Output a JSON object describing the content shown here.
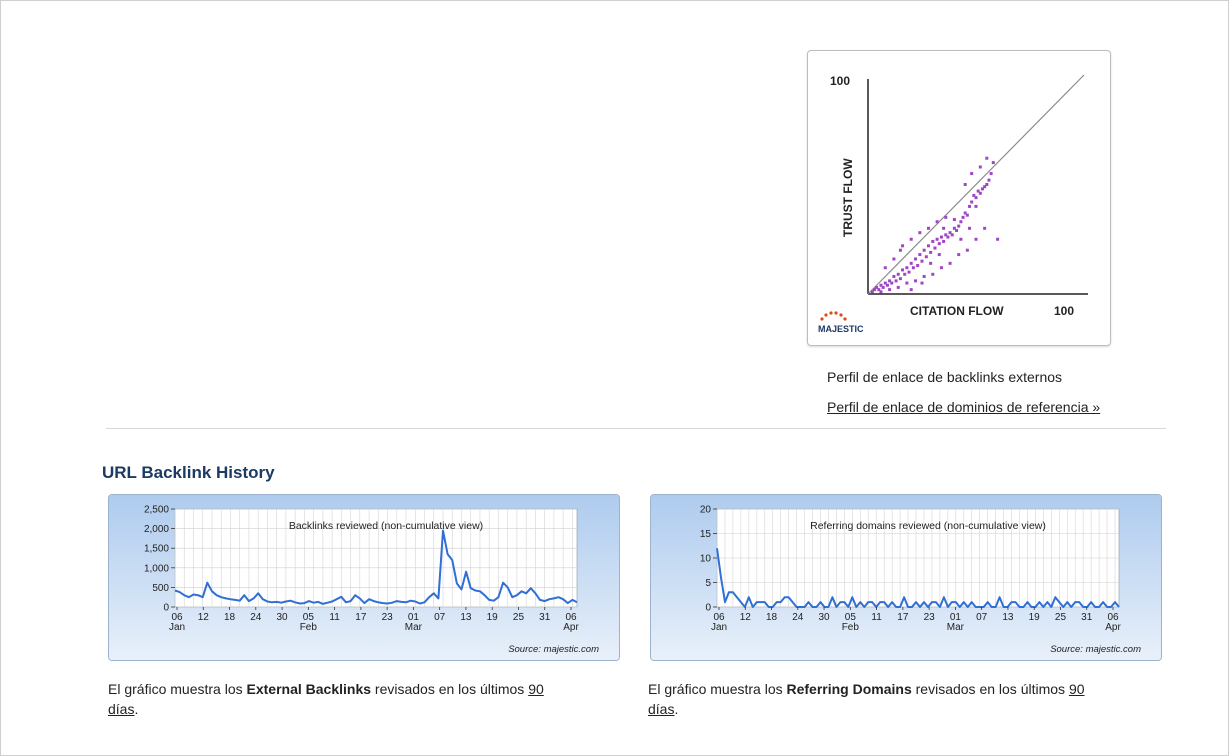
{
  "flow_chart": {
    "brand": "MAJESTIC",
    "y_label": "TRUST FLOW",
    "x_label": "CITATION FLOW",
    "y_max_label": "100",
    "x_max_label": "100",
    "colors": {
      "points": "#a046c4",
      "axis": "#222222",
      "diagonal": "#8a8a8a",
      "brand_dots": "#e04a1a"
    }
  },
  "flow_caption": "Perfil de enlace de backlinks externos",
  "flow_link": "Perfil de enlace de dominios de referencia »",
  "section_title": "URL Backlink History",
  "chart_data": [
    {
      "type": "scatter",
      "title": "",
      "xlabel": "CITATION FLOW",
      "ylabel": "TRUST FLOW",
      "xlim": [
        0,
        100
      ],
      "ylim": [
        0,
        100
      ],
      "x_ticks": [
        100
      ],
      "y_ticks": [
        100
      ],
      "reference_line": "y = x",
      "grid": false,
      "points": [
        [
          2,
          1
        ],
        [
          3,
          2
        ],
        [
          4,
          3
        ],
        [
          5,
          2
        ],
        [
          6,
          4
        ],
        [
          7,
          3
        ],
        [
          8,
          5
        ],
        [
          9,
          4
        ],
        [
          10,
          6
        ],
        [
          11,
          5
        ],
        [
          12,
          8
        ],
        [
          13,
          6
        ],
        [
          14,
          9
        ],
        [
          15,
          7
        ],
        [
          16,
          11
        ],
        [
          17,
          9
        ],
        [
          18,
          12
        ],
        [
          19,
          10
        ],
        [
          20,
          14
        ],
        [
          21,
          12
        ],
        [
          22,
          16
        ],
        [
          23,
          13
        ],
        [
          24,
          18
        ],
        [
          25,
          15
        ],
        [
          26,
          20
        ],
        [
          27,
          17
        ],
        [
          28,
          22
        ],
        [
          29,
          19
        ],
        [
          30,
          24
        ],
        [
          31,
          21
        ],
        [
          32,
          25
        ],
        [
          33,
          23
        ],
        [
          34,
          26
        ],
        [
          35,
          24
        ],
        [
          36,
          27
        ],
        [
          37,
          26
        ],
        [
          38,
          28
        ],
        [
          39,
          27
        ],
        [
          40,
          30
        ],
        [
          41,
          29
        ],
        [
          42,
          31
        ],
        [
          43,
          33
        ],
        [
          44,
          35
        ],
        [
          45,
          37
        ],
        [
          46,
          36
        ],
        [
          47,
          40
        ],
        [
          48,
          42
        ],
        [
          49,
          45
        ],
        [
          50,
          44
        ],
        [
          51,
          47
        ],
        [
          52,
          46
        ],
        [
          53,
          48
        ],
        [
          54,
          49
        ],
        [
          55,
          50
        ],
        [
          56,
          52
        ],
        [
          57,
          55
        ],
        [
          58,
          60
        ],
        [
          10,
          2
        ],
        [
          14,
          3
        ],
        [
          18,
          5
        ],
        [
          22,
          6
        ],
        [
          26,
          8
        ],
        [
          30,
          9
        ],
        [
          34,
          12
        ],
        [
          38,
          14
        ],
        [
          42,
          18
        ],
        [
          46,
          20
        ],
        [
          50,
          25
        ],
        [
          54,
          30
        ],
        [
          15,
          20
        ],
        [
          20,
          25
        ],
        [
          24,
          28
        ],
        [
          28,
          30
        ],
        [
          32,
          33
        ],
        [
          36,
          35
        ],
        [
          8,
          12
        ],
        [
          12,
          16
        ],
        [
          16,
          22
        ],
        [
          45,
          50
        ],
        [
          48,
          55
        ],
        [
          52,
          58
        ],
        [
          55,
          62
        ],
        [
          50,
          40
        ],
        [
          40,
          34
        ],
        [
          35,
          30
        ],
        [
          60,
          25
        ],
        [
          25,
          5
        ],
        [
          20,
          2
        ],
        [
          6,
          1
        ],
        [
          33,
          18
        ],
        [
          29,
          14
        ],
        [
          43,
          25
        ],
        [
          47,
          30
        ]
      ]
    },
    {
      "type": "line",
      "title": "Backlinks reviewed (non-cumulative view)",
      "xlabel": "",
      "ylabel": "",
      "ylim": [
        0,
        2500
      ],
      "y_ticks": [
        "2,500",
        "2,000",
        "1,500",
        "1,000",
        "500",
        "0"
      ],
      "x_tick_labels": [
        "06",
        "12",
        "18",
        "24",
        "30",
        "05",
        "11",
        "17",
        "23",
        "01",
        "07",
        "13",
        "19",
        "25",
        "31",
        "06"
      ],
      "month_labels": [
        "Jan",
        "Feb",
        "Mar",
        "Apr"
      ],
      "source": "Source: majestic.com",
      "series": [
        {
          "values": [
            420,
            380,
            300,
            250,
            320,
            300,
            250,
            620,
            400,
            300,
            250,
            220,
            200,
            180,
            160,
            300,
            150,
            220,
            350,
            200,
            140,
            120,
            130,
            110,
            140,
            160,
            120,
            90,
            100,
            150,
            110,
            130,
            80,
            110,
            140,
            200,
            260,
            120,
            150,
            300,
            220,
            100,
            200,
            150,
            120,
            100,
            90,
            110,
            150,
            130,
            120,
            160,
            140,
            90,
            120,
            250,
            350,
            220,
            1950,
            1350,
            1200,
            600,
            450,
            900,
            480,
            420,
            400,
            300,
            180,
            160,
            250,
            620,
            500,
            250,
            300,
            400,
            350,
            480,
            350,
            180,
            150,
            200,
            220,
            250,
            200,
            100,
            180,
            120
          ]
        }
      ]
    },
    {
      "type": "line",
      "title": "Referring domains reviewed (non-cumulative view)",
      "xlabel": "",
      "ylabel": "",
      "ylim": [
        0,
        20
      ],
      "y_ticks": [
        "20",
        "15",
        "10",
        "5",
        "0"
      ],
      "x_tick_labels": [
        "06",
        "12",
        "18",
        "24",
        "30",
        "05",
        "11",
        "17",
        "23",
        "01",
        "07",
        "13",
        "19",
        "25",
        "31",
        "06"
      ],
      "month_labels": [
        "Jan",
        "Feb",
        "Mar",
        "Apr"
      ],
      "source": "Source: majestic.com",
      "series": [
        {
          "values": [
            12,
            6,
            1,
            3,
            3,
            2,
            1,
            0,
            2,
            0,
            1,
            1,
            1,
            0,
            0,
            1,
            1,
            2,
            2,
            1,
            0,
            0,
            0,
            1,
            0,
            0,
            1,
            0,
            0,
            2,
            0,
            1,
            1,
            0,
            2,
            0,
            1,
            0,
            1,
            1,
            0,
            1,
            1,
            0,
            1,
            0,
            0,
            2,
            0,
            0,
            1,
            0,
            1,
            0,
            1,
            1,
            0,
            2,
            0,
            1,
            1,
            0,
            1,
            0,
            1,
            0,
            0,
            0,
            1,
            0,
            0,
            2,
            0,
            0,
            1,
            1,
            0,
            0,
            1,
            0,
            0,
            1,
            0,
            1,
            0,
            2,
            1,
            0,
            1,
            0,
            1,
            1,
            0,
            0,
            1,
            0,
            0,
            1,
            0,
            0,
            1,
            0
          ]
        }
      ]
    }
  ],
  "descriptions": {
    "backlinks": {
      "prefix": "El gráfico muestra los ",
      "bold": "External Backlinks",
      "middle": " revisados en los últimos ",
      "days": "90",
      "suffix_link": "días",
      "end": "."
    },
    "domains": {
      "prefix": "El gráfico muestra los ",
      "bold": "Referring Domains",
      "middle": " revisados en los últimos ",
      "days": "90",
      "suffix_link": "días",
      "end": "."
    }
  }
}
